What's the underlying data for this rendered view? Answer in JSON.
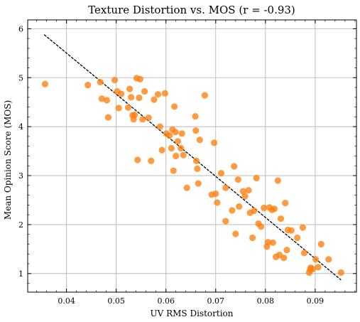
{
  "chart_data": {
    "type": "scatter",
    "title": "Texture Distortion vs. MOS (r = -0.93)",
    "xlabel": "UV RMS Distortion",
    "ylabel": "Mean Opinion Score (MOS)",
    "xlim": [
      0.0322,
      0.0983
    ],
    "ylim": [
      0.62,
      6.18
    ],
    "xticks": [
      0.04,
      0.05,
      0.06,
      0.07,
      0.08,
      0.09
    ],
    "xtick_labels": [
      "0.04",
      "0.05",
      "0.06",
      "0.07",
      "0.08",
      "0.09"
    ],
    "yticks": [
      1,
      2,
      3,
      4,
      5,
      6
    ],
    "ytick_labels": [
      "1",
      "2",
      "3",
      "4",
      "5",
      "6"
    ],
    "grid": true,
    "colors": {
      "points": "#ff7f0e",
      "trend": "#000000",
      "grid": "#b0b0b0"
    },
    "trendline": {
      "x": [
        0.0355,
        0.0952
      ],
      "y": [
        5.88,
        0.87
      ],
      "style": "dashed"
    },
    "points": [
      {
        "x": 0.0357,
        "y": 4.87
      },
      {
        "x": 0.0443,
        "y": 4.85
      },
      {
        "x": 0.0468,
        "y": 4.91
      },
      {
        "x": 0.0471,
        "y": 4.57
      },
      {
        "x": 0.0481,
        "y": 4.54
      },
      {
        "x": 0.0484,
        "y": 4.19
      },
      {
        "x": 0.0497,
        "y": 4.95
      },
      {
        "x": 0.0502,
        "y": 4.72
      },
      {
        "x": 0.0505,
        "y": 4.38
      },
      {
        "x": 0.051,
        "y": 4.67
      },
      {
        "x": 0.0524,
        "y": 4.39
      },
      {
        "x": 0.0527,
        "y": 4.77
      },
      {
        "x": 0.053,
        "y": 4.6
      },
      {
        "x": 0.0533,
        "y": 4.23
      },
      {
        "x": 0.0535,
        "y": 4.15
      },
      {
        "x": 0.0537,
        "y": 4.24
      },
      {
        "x": 0.0541,
        "y": 4.99
      },
      {
        "x": 0.0543,
        "y": 3.32
      },
      {
        "x": 0.0546,
        "y": 4.59
      },
      {
        "x": 0.0548,
        "y": 4.97
      },
      {
        "x": 0.0553,
        "y": 4.15
      },
      {
        "x": 0.0557,
        "y": 4.72
      },
      {
        "x": 0.0565,
        "y": 4.18
      },
      {
        "x": 0.057,
        "y": 3.3
      },
      {
        "x": 0.0576,
        "y": 4.55
      },
      {
        "x": 0.0584,
        "y": 4.66
      },
      {
        "x": 0.0588,
        "y": 4.0
      },
      {
        "x": 0.0592,
        "y": 3.52
      },
      {
        "x": 0.0598,
        "y": 4.68
      },
      {
        "x": 0.0601,
        "y": 3.86
      },
      {
        "x": 0.0607,
        "y": 3.82
      },
      {
        "x": 0.0611,
        "y": 3.56
      },
      {
        "x": 0.0613,
        "y": 3.94
      },
      {
        "x": 0.0615,
        "y": 3.1
      },
      {
        "x": 0.0617,
        "y": 4.41
      },
      {
        "x": 0.0619,
        "y": 3.89
      },
      {
        "x": 0.062,
        "y": 3.4
      },
      {
        "x": 0.0624,
        "y": 3.7
      },
      {
        "x": 0.063,
        "y": 3.56
      },
      {
        "x": 0.0632,
        "y": 3.86
      },
      {
        "x": 0.0635,
        "y": 3.42
      },
      {
        "x": 0.0642,
        "y": 2.75
      },
      {
        "x": 0.0659,
        "y": 4.21
      },
      {
        "x": 0.066,
        "y": 3.92
      },
      {
        "x": 0.0661,
        "y": 3.3
      },
      {
        "x": 0.0663,
        "y": 3.14
      },
      {
        "x": 0.0665,
        "y": 2.84
      },
      {
        "x": 0.0668,
        "y": 3.73
      },
      {
        "x": 0.0678,
        "y": 4.64
      },
      {
        "x": 0.0692,
        "y": 2.61
      },
      {
        "x": 0.0697,
        "y": 3.67
      },
      {
        "x": 0.07,
        "y": 2.63
      },
      {
        "x": 0.0703,
        "y": 2.45
      },
      {
        "x": 0.0711,
        "y": 3.05
      },
      {
        "x": 0.072,
        "y": 2.07
      },
      {
        "x": 0.072,
        "y": 2.75
      },
      {
        "x": 0.0733,
        "y": 2.29
      },
      {
        "x": 0.0737,
        "y": 3.19
      },
      {
        "x": 0.074,
        "y": 1.81
      },
      {
        "x": 0.0745,
        "y": 2.92
      },
      {
        "x": 0.0747,
        "y": 2.37
      },
      {
        "x": 0.0755,
        "y": 2.68
      },
      {
        "x": 0.0759,
        "y": 2.58
      },
      {
        "x": 0.0766,
        "y": 2.7
      },
      {
        "x": 0.0769,
        "y": 2.24
      },
      {
        "x": 0.0774,
        "y": 1.73
      },
      {
        "x": 0.0777,
        "y": 2.28
      },
      {
        "x": 0.0782,
        "y": 2.95
      },
      {
        "x": 0.0786,
        "y": 2.02
      },
      {
        "x": 0.0791,
        "y": 1.96
      },
      {
        "x": 0.0797,
        "y": 2.34
      },
      {
        "x": 0.0803,
        "y": 1.55
      },
      {
        "x": 0.0805,
        "y": 1.64
      },
      {
        "x": 0.0808,
        "y": 2.35
      },
      {
        "x": 0.0813,
        "y": 2.3
      },
      {
        "x": 0.0815,
        "y": 1.63
      },
      {
        "x": 0.0818,
        "y": 2.32
      },
      {
        "x": 0.0821,
        "y": 1.34
      },
      {
        "x": 0.0825,
        "y": 2.9
      },
      {
        "x": 0.0828,
        "y": 1.38
      },
      {
        "x": 0.0831,
        "y": 2.12
      },
      {
        "x": 0.0837,
        "y": 1.32
      },
      {
        "x": 0.084,
        "y": 2.44
      },
      {
        "x": 0.0843,
        "y": 1.48
      },
      {
        "x": 0.0845,
        "y": 1.89
      },
      {
        "x": 0.0852,
        "y": 1.88
      },
      {
        "x": 0.0864,
        "y": 1.73
      },
      {
        "x": 0.0875,
        "y": 1.94
      },
      {
        "x": 0.0878,
        "y": 1.42
      },
      {
        "x": 0.0888,
        "y": 1.02
      },
      {
        "x": 0.089,
        "y": 1.08
      },
      {
        "x": 0.0891,
        "y": 1.12
      },
      {
        "x": 0.0895,
        "y": 1.09
      },
      {
        "x": 0.0901,
        "y": 1.29
      },
      {
        "x": 0.0906,
        "y": 1.13
      },
      {
        "x": 0.0912,
        "y": 1.6
      },
      {
        "x": 0.0927,
        "y": 1.29
      },
      {
        "x": 0.0952,
        "y": 1.02
      }
    ]
  }
}
